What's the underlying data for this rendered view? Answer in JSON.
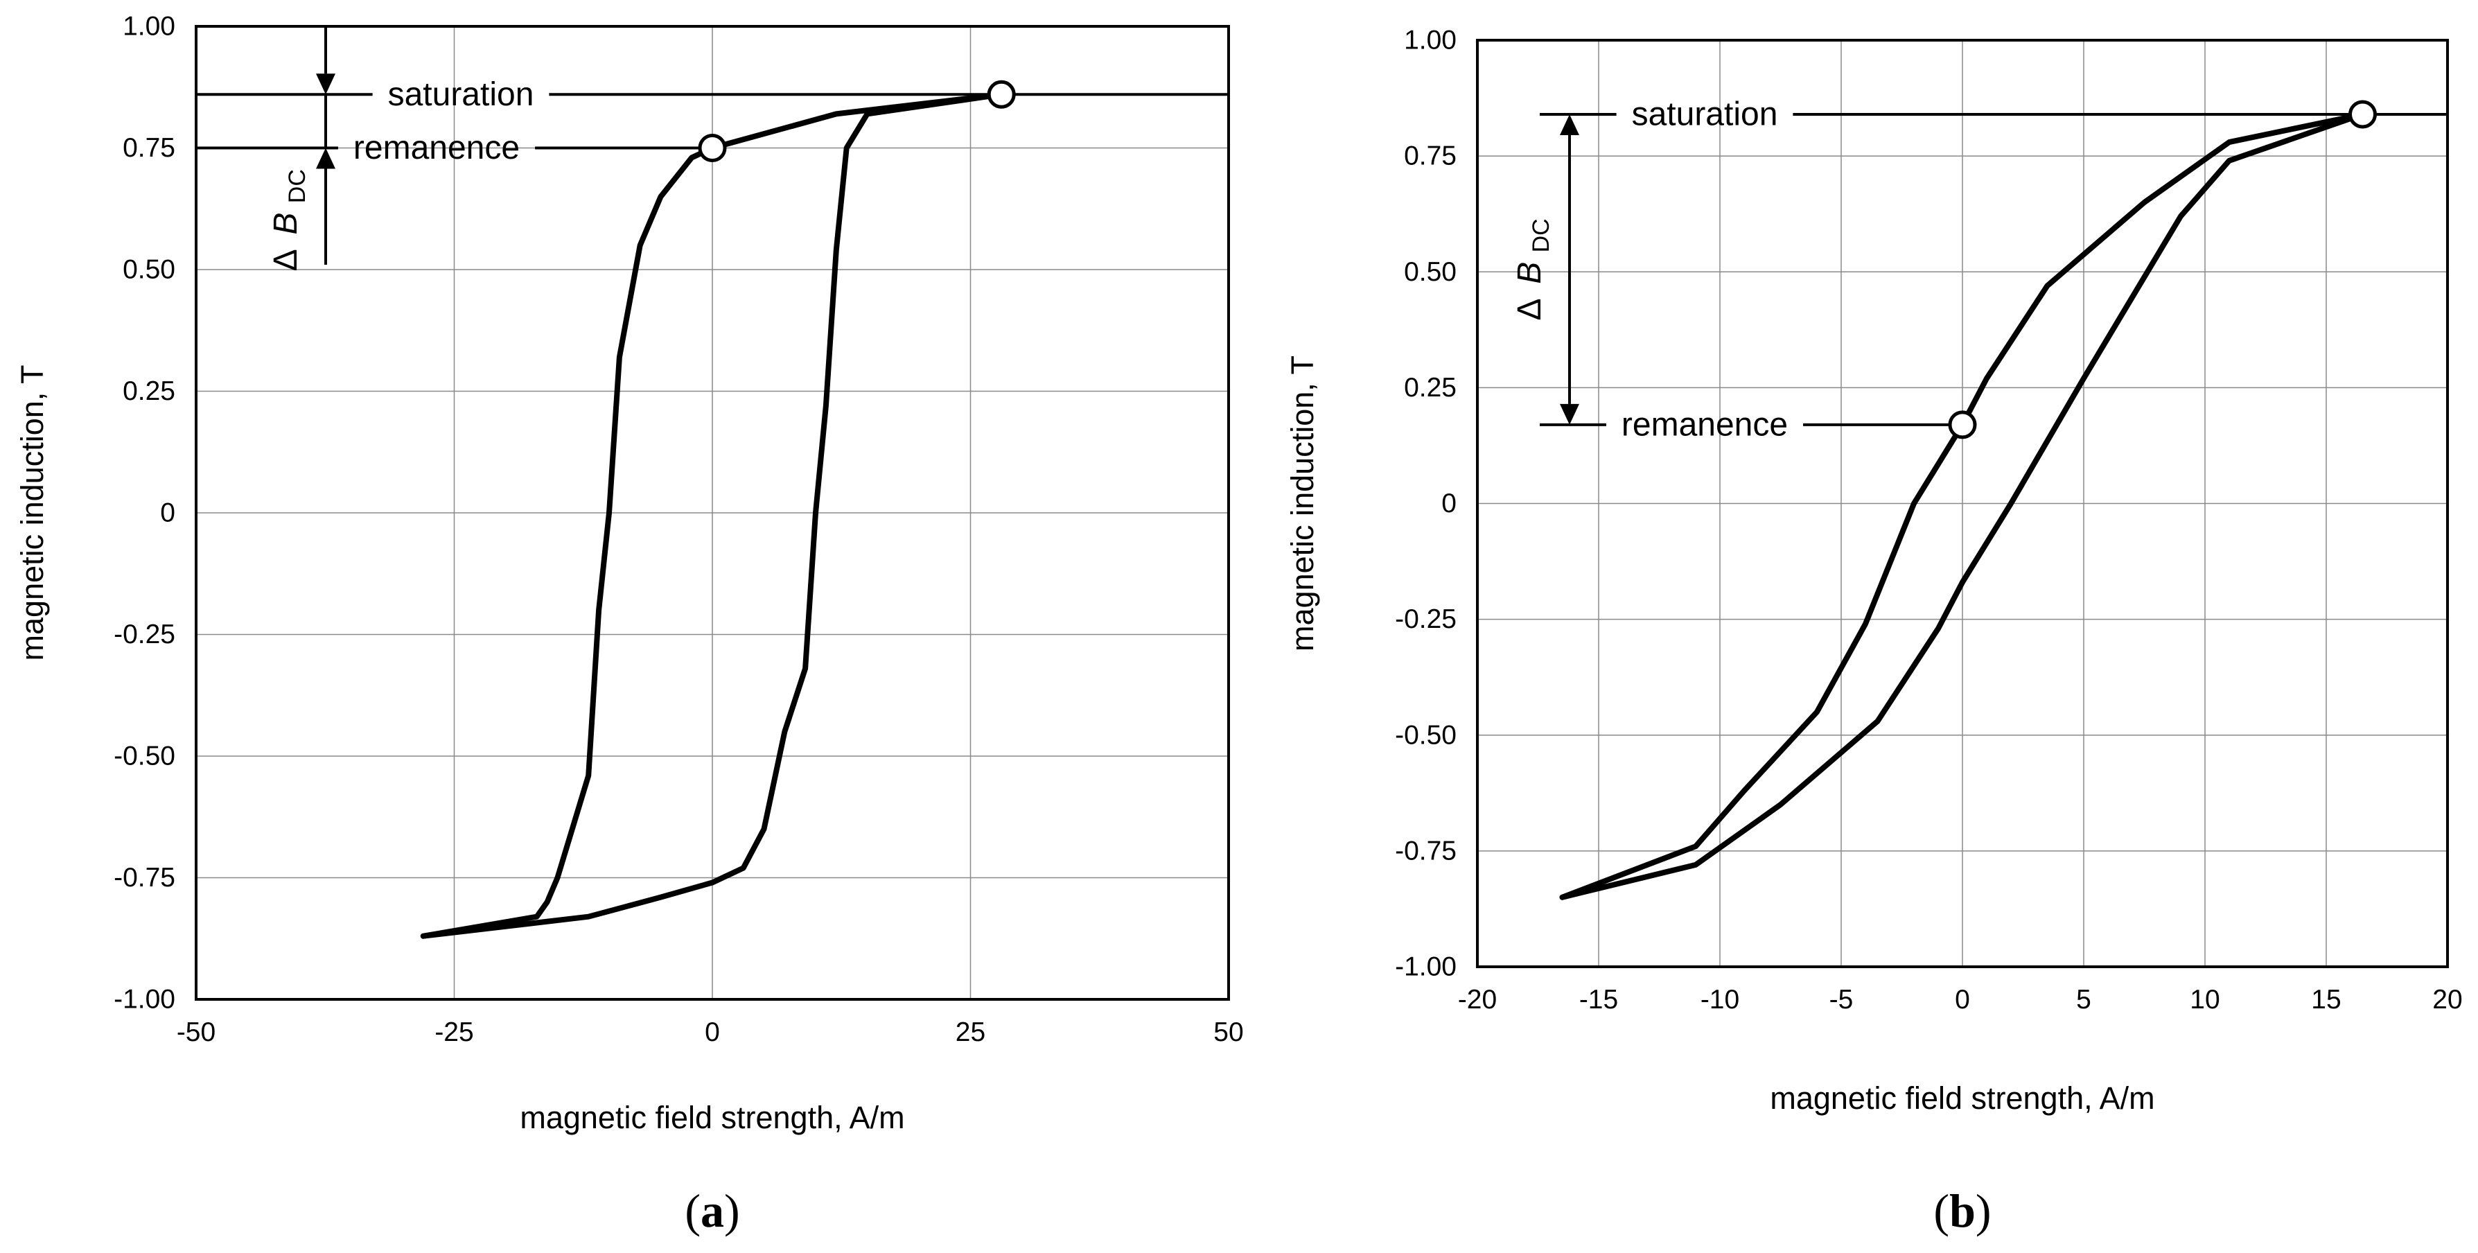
{
  "chart_data": [
    {
      "type": "line",
      "panel": "a",
      "caption": {
        "open": "(",
        "letter": "a",
        "close": ")"
      },
      "xlabel": "magnetic field strength, A/m",
      "ylabel": "magnetic induction, T",
      "xlim": [
        -50,
        50
      ],
      "ylim": [
        -1.0,
        1.0
      ],
      "xticks": [
        -50,
        -25,
        0,
        25,
        50
      ],
      "xtick_labels": [
        "-50",
        "-25",
        "0",
        "25",
        "50"
      ],
      "yticks": [
        -1.0,
        -0.75,
        -0.5,
        -0.25,
        0,
        0.25,
        0.5,
        0.75,
        1.0
      ],
      "ytick_labels": [
        "-1.00",
        "-0.75",
        "-0.50",
        "-0.25",
        "0",
        "0.25",
        "0.50",
        "0.75",
        "1.00"
      ],
      "grid": true,
      "series": [
        {
          "name": "descending branch",
          "x": [
            28,
            16,
            12,
            0,
            -2,
            -5,
            -7,
            -9,
            -10,
            -11,
            -12,
            -15,
            -16,
            -17,
            -28
          ],
          "y": [
            0.86,
            0.83,
            0.82,
            0.75,
            0.73,
            0.65,
            0.55,
            0.32,
            0.0,
            -0.2,
            -0.54,
            -0.75,
            -0.8,
            -0.83,
            -0.87
          ]
        },
        {
          "name": "ascending branch",
          "x": [
            -28,
            -12,
            -5,
            0,
            3,
            5,
            6,
            7,
            9,
            10,
            11,
            12,
            13,
            15,
            28
          ],
          "y": [
            -0.87,
            -0.83,
            -0.79,
            -0.76,
            -0.73,
            -0.65,
            -0.55,
            -0.45,
            -0.32,
            0.0,
            0.22,
            0.54,
            0.75,
            0.82,
            0.86
          ]
        }
      ],
      "markers": [
        {
          "name": "saturation point",
          "x": 28,
          "y": 0.86
        },
        {
          "name": "remanence point",
          "x": 0,
          "y": 0.75
        }
      ],
      "annotations": {
        "saturation": {
          "text": "saturation",
          "y": 0.86
        },
        "remanence": {
          "text": "remanence",
          "y": 0.75
        },
        "delta": {
          "symbol": "Δ",
          "main": "B",
          "sub": "DC"
        }
      }
    },
    {
      "type": "line",
      "panel": "b",
      "caption": {
        "open": "(",
        "letter": "b",
        "close": ")"
      },
      "xlabel": "magnetic field strength, A/m",
      "ylabel": "magnetic induction, T",
      "xlim": [
        -20,
        20
      ],
      "ylim": [
        -1.0,
        1.0
      ],
      "xticks": [
        -20,
        -15,
        -10,
        -5,
        0,
        5,
        10,
        15,
        20
      ],
      "xtick_labels": [
        "-20",
        "-15",
        "-10",
        "-5",
        "0",
        "5",
        "10",
        "15",
        "20"
      ],
      "yticks": [
        -1.0,
        -0.75,
        -0.5,
        -0.25,
        0,
        0.25,
        0.5,
        0.75,
        1.0
      ],
      "ytick_labels": [
        "-1.00",
        "-0.75",
        "-0.50",
        "-0.25",
        "0",
        "0.25",
        "0.50",
        "0.75",
        "1.00"
      ],
      "grid": true,
      "series": [
        {
          "name": "descending branch",
          "x": [
            16.5,
            11,
            7.5,
            3.5,
            1,
            0,
            -2,
            -4,
            -6,
            -9,
            -11,
            -16.5
          ],
          "y": [
            0.84,
            0.78,
            0.65,
            0.47,
            0.27,
            0.17,
            0.0,
            -0.26,
            -0.45,
            -0.62,
            -0.74,
            -0.85
          ]
        },
        {
          "name": "ascending branch",
          "x": [
            -16.5,
            -11,
            -7.5,
            -3.5,
            -1,
            0,
            2,
            5,
            9,
            11,
            16.5
          ],
          "y": [
            -0.85,
            -0.78,
            -0.65,
            -0.47,
            -0.27,
            -0.17,
            0.0,
            0.27,
            0.62,
            0.74,
            0.84
          ]
        }
      ],
      "markers": [
        {
          "name": "saturation point",
          "x": 16.5,
          "y": 0.84
        },
        {
          "name": "remanence point",
          "x": 0,
          "y": 0.17
        }
      ],
      "annotations": {
        "saturation": {
          "text": "saturation",
          "y": 0.84
        },
        "remanence": {
          "text": "remanence",
          "y": 0.17
        },
        "delta": {
          "symbol": "Δ",
          "main": "B",
          "sub": "DC"
        }
      }
    }
  ]
}
